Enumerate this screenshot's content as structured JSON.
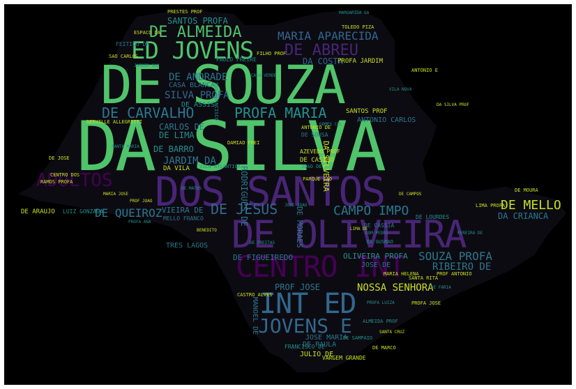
{
  "wordcloud": {
    "colors": {
      "background": "#000000",
      "green": "#4fc46a",
      "purple": "#482576",
      "deep_purple": "#440154",
      "teal": "#2a788e",
      "blue": "#31688e",
      "cyan": "#21918c",
      "yellow": "#c8e020",
      "lime": "#7ad151"
    },
    "words": [
      {
        "text": "DA SILVA"
      },
      {
        "text": "DE SOUZA"
      },
      {
        "text": "DOS SANTOS"
      },
      {
        "text": "DE OLIVEIRA"
      },
      {
        "text": "CENTRO INT"
      },
      {
        "text": "INT ED"
      },
      {
        "text": "ED JOVENS"
      },
      {
        "text": "JOVENS E"
      },
      {
        "text": "DE ALMEIDA"
      },
      {
        "text": "ADULTOS"
      },
      {
        "text": "DE CARVALHO"
      },
      {
        "text": "PROFA MARIA"
      },
      {
        "text": "MARIA APARECIDA"
      },
      {
        "text": "DE ABREU"
      },
      {
        "text": "DE MELLO"
      },
      {
        "text": "CAMPO IMPO"
      },
      {
        "text": "DE JESUS"
      },
      {
        "text": "SOUZA PROFA"
      },
      {
        "text": "RIBEIRO DE"
      },
      {
        "text": "NOSSA SENHORA"
      },
      {
        "text": "DE QUEIROZ"
      },
      {
        "text": "SANTOS PROFA"
      },
      {
        "text": "DE ANDRADE"
      },
      {
        "text": "SILVA PROFA"
      },
      {
        "text": "JARDIM DA"
      },
      {
        "text": "DE BARRO"
      },
      {
        "text": "DE LIMA"
      },
      {
        "text": "CARLOS DE"
      },
      {
        "text": "DA COSTA"
      },
      {
        "text": "DE ASSIS"
      },
      {
        "text": "CASA BLANCA"
      },
      {
        "text": "DE FIGUEIREDO"
      },
      {
        "text": "OLIVEIRA PROFA"
      },
      {
        "text": "DE MORAES"
      },
      {
        "text": "RODRIGUES DE"
      },
      {
        "text": "DA SILVEIRA"
      },
      {
        "text": "DE ARAUJO"
      },
      {
        "text": "TRES LAGOS"
      },
      {
        "text": "VIEIRA DE"
      },
      {
        "text": "DA CRIANCA"
      },
      {
        "text": "PROF JOSE"
      },
      {
        "text": "JOSE DE"
      },
      {
        "text": "DE PAULA"
      },
      {
        "text": "JULIO DE"
      },
      {
        "text": "JOSE MARIA"
      },
      {
        "text": "MANOEL DE"
      },
      {
        "text": "DA VILA"
      },
      {
        "text": "SANTOS PROF"
      },
      {
        "text": "ANTONIO CARLOS"
      },
      {
        "text": "PROFA JARDIM"
      },
      {
        "text": "PAULO FREIRE"
      },
      {
        "text": "LUIZ GONZAGA"
      },
      {
        "text": "DE CASTRO"
      },
      {
        "text": "AZEVEDO PROF"
      },
      {
        "text": "VARGEM GRANDE"
      },
      {
        "text": "FRANCISCO DE"
      },
      {
        "text": "PRESTES PROF"
      },
      {
        "text": "TOLEDO PIZA"
      },
      {
        "text": "MELLO FRANCO"
      },
      {
        "text": "DE CASSIA"
      },
      {
        "text": "DE LOURDES"
      },
      {
        "text": "CASTRO ALVES"
      },
      {
        "text": "PROFA JOSE"
      },
      {
        "text": "ALMEIDA PROF"
      },
      {
        "text": "DERVILLE ALLEGRETTI"
      },
      {
        "text": "FEITICO DA"
      },
      {
        "text": "PARQUE SAO"
      },
      {
        "text": "DE SOUSA"
      },
      {
        "text": "ANTONIO DE"
      },
      {
        "text": "DAMIAO FREI"
      },
      {
        "text": "MARIA HELENA"
      },
      {
        "text": "LIMA PROFA"
      },
      {
        "text": "DE MOURA"
      },
      {
        "text": "DE SAMPAIO"
      },
      {
        "text": "SAO FRANCISCO"
      },
      {
        "text": "DE GUSMAO"
      },
      {
        "text": "SANTA RITA"
      },
      {
        "text": "JOAO DE"
      },
      {
        "text": "ESPACO DA"
      },
      {
        "text": "SAO CARLOS"
      },
      {
        "text": "FILHO PROF"
      },
      {
        "text": "DE MARCO"
      },
      {
        "text": "DE JOSE"
      },
      {
        "text": "VILA ATLANTICA"
      },
      {
        "text": "PROF ANTONIO"
      },
      {
        "text": "CENTRO DOS"
      },
      {
        "text": "RAMOS PROFA"
      },
      {
        "text": "DA SILVA PROF"
      },
      {
        "text": "ANTONIO E"
      },
      {
        "text": "GOMES CEL"
      },
      {
        "text": "JOSE JOAO"
      },
      {
        "text": "DE FREITAS"
      },
      {
        "text": "BENEDITO"
      },
      {
        "text": "PROFA ANA"
      },
      {
        "text": "LIMA DE"
      },
      {
        "text": "VILA NOVA"
      },
      {
        "text": "DE MATOS"
      },
      {
        "text": "MARIA JOSE"
      },
      {
        "text": "SANTA MARIA"
      },
      {
        "text": "DOM PEDRO"
      },
      {
        "text": "DE CAMPOS"
      },
      {
        "text": "PROF JOAO"
      },
      {
        "text": "JARDIM SAO"
      },
      {
        "text": "MARGARIDA DA"
      },
      {
        "text": "PROFA LUIZA"
      },
      {
        "text": "DE FARIA"
      },
      {
        "text": "PEREIRA DE"
      },
      {
        "text": "CASA VERDE"
      },
      {
        "text": "SANTA CRUZ"
      }
    ]
  }
}
